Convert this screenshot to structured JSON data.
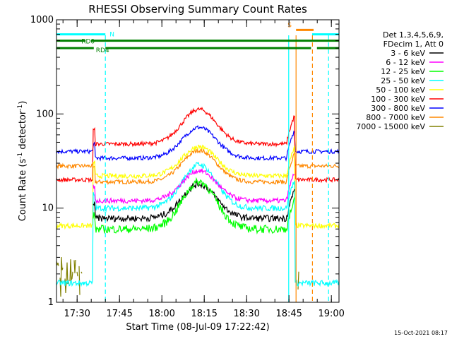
{
  "chart_data": {
    "type": "line",
    "title": "RHESSI Observing Summary Count Rates",
    "xlabel": "Start Time (08-Jul-09 17:22:42)",
    "ylabel_parts": [
      "Count Rate (s",
      "-1",
      " detector",
      "-1",
      ")"
    ],
    "yscale": "log",
    "ylim": [
      1,
      1000
    ],
    "y_ticks": [
      {
        "value": 1,
        "label": "1"
      },
      {
        "value": 10,
        "label": "10"
      },
      {
        "value": 100,
        "label": "100"
      },
      {
        "value": 1000,
        "label": "1000"
      }
    ],
    "xlim_min": [
      0,
      100
    ],
    "x_ticks": [
      {
        "min": 7.3,
        "label": "17:30"
      },
      {
        "min": 22.3,
        "label": "17:45"
      },
      {
        "min": 37.3,
        "label": "18:00"
      },
      {
        "min": 52.3,
        "label": "18:15"
      },
      {
        "min": 67.3,
        "label": "18:30"
      },
      {
        "min": 82.3,
        "label": "18:45"
      },
      {
        "min": 97.3,
        "label": "19:00"
      }
    ],
    "legend_header": [
      "Det 1,3,4,5,6,9,",
      "FDecim 1, Att 0"
    ],
    "legend_position": "right",
    "series": [
      {
        "name": "3 - 6 keV",
        "color": "#000000",
        "gap": 0.08,
        "night": null,
        "peak": 18,
        "base": 7.8
      },
      {
        "name": "6 - 12 keV",
        "color": "#ff00ff",
        "gap": 0.06,
        "night": null,
        "peak": 25,
        "base": 12
      },
      {
        "name": "12 - 25 keV",
        "color": "#00ff00",
        "gap": 0.1,
        "night": null,
        "peak": 19,
        "base": 6
      },
      {
        "name": "25 - 50 keV",
        "color": "#00ffff",
        "gap": 0.07,
        "night": 1.6,
        "peak": 29,
        "base": 10
      },
      {
        "name": "50 - 100 keV",
        "color": "#ffff00",
        "gap": 0.06,
        "night": 6.5,
        "peak": 45,
        "base": 22
      },
      {
        "name": "100 - 300 keV",
        "color": "#ff0000",
        "gap": 0.05,
        "night": 20,
        "peak": 112,
        "base": 48
      },
      {
        "name": "300 - 800 keV",
        "color": "#0000ff",
        "gap": 0.05,
        "night": 40,
        "peak": 72,
        "base": 34
      },
      {
        "name": "800 - 7000 keV",
        "color": "#ff8800",
        "gap": 0.05,
        "night": 28,
        "peak": 41,
        "base": 19
      },
      {
        "name": "7000 - 15000 keV",
        "color": "#808000",
        "gap": 0.1,
        "night": null,
        "peak": 2.5,
        "base": 1
      }
    ],
    "day_interval_min": [
      12.8,
      83.4
    ],
    "flag_bars": [
      {
        "label": "N",
        "color": "#00ffff",
        "y": 700,
        "segments": [
          [
            0,
            17.3
          ],
          [
            90.5,
            100
          ]
        ]
      },
      {
        "label": "S",
        "color": "#ff8800",
        "y": 780,
        "segments": [
          [
            84.8,
            91
          ]
        ]
      },
      {
        "label": "RD0",
        "color": "#008000",
        "y": 600,
        "segments": [
          [
            0,
            10.3
          ],
          [
            12.2,
            100
          ]
        ]
      },
      {
        "label": "RD4",
        "color": "#008000",
        "y": 500,
        "segments": [
          [
            0,
            13.2
          ],
          [
            17.3,
            90.1
          ],
          [
            92.2,
            100
          ]
        ]
      }
    ],
    "vertical_markers": [
      {
        "min": 17.3,
        "color": "#00ffff",
        "dash": true
      },
      {
        "min": 82.2,
        "color": "#00ffff",
        "dash": false
      },
      {
        "min": 84.8,
        "color": "#ff8800",
        "dash": false
      },
      {
        "min": 90.6,
        "color": "#ff8800",
        "dash": true
      },
      {
        "min": 96.3,
        "color": "#00ffff",
        "dash": true
      }
    ]
  },
  "footer_timestamp": "15-Oct-2021 08:17"
}
